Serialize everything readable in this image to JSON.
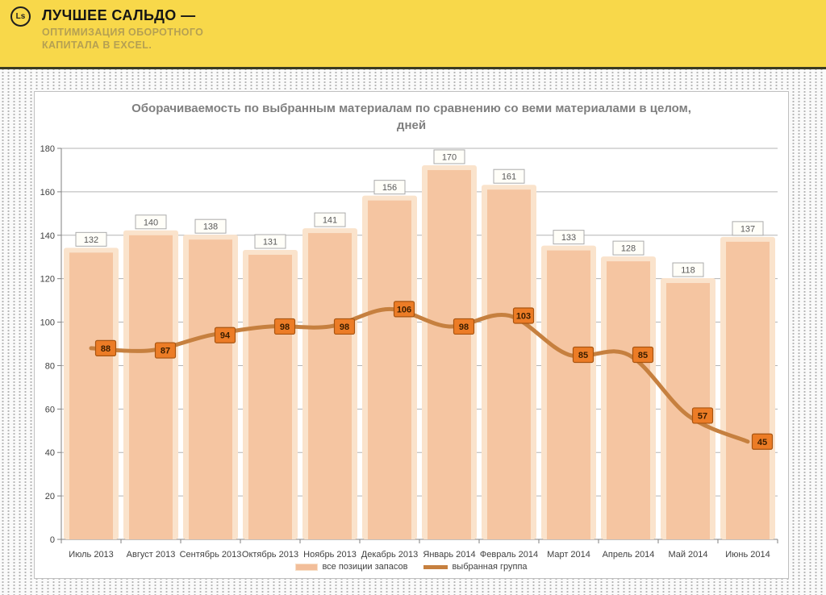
{
  "header": {
    "logo_text": "Ls",
    "title": "ЛУЧШЕЕ САЛЬДО —",
    "subtitle_lines": [
      "ОПТИМИЗАЦИЯ ОБОРОТНОГО",
      "КАПИТАЛА В EXCEL."
    ]
  },
  "colors": {
    "header_bg": "#F8D84A",
    "header_border": "#3B3B22",
    "bar_fill": "#F5C5A1",
    "bar_glow": "#FAE3CC",
    "bar_label_bg": "#FFFEF8",
    "bar_label_border": "#ABABAB",
    "line": "#C6803F",
    "marker_fill": "#EC7C26",
    "marker_border": "#A85410",
    "grid": "#B3B3B3",
    "axis": "#808080",
    "title_text": "#7F7F7F"
  },
  "chart_data": {
    "type": "bar",
    "combo_with_line": true,
    "title": "Оборачиваемость по выбранным материалам по сравнению со веми материалами в целом, дней",
    "title_lines": [
      "Оборачиваемость по выбранным материалам по сравнению со веми материалами в целом,",
      "дней"
    ],
    "categories": [
      "Июль 2013",
      "Август 2013",
      "Сентябрь 2013",
      "Октябрь 2013",
      "Ноябрь 2013",
      "Декабрь 2013",
      "Январь 2014",
      "Февраль 2014",
      "Март 2014",
      "Апрель 2014",
      "Май 2014",
      "Июнь 2014"
    ],
    "series": [
      {
        "name": "все позиции запасов",
        "type": "bar",
        "values": [
          132,
          140,
          138,
          131,
          141,
          156,
          170,
          161,
          133,
          128,
          118,
          137
        ]
      },
      {
        "name": "выбранная группа",
        "type": "line",
        "values": [
          88,
          87,
          94,
          98,
          98,
          106,
          98,
          103,
          85,
          85,
          57,
          45
        ]
      }
    ],
    "xlabel": "",
    "ylabel": "",
    "ylim": [
      0,
      180
    ],
    "ytick_step": 20,
    "grid": true,
    "legend_position": "bottom"
  }
}
